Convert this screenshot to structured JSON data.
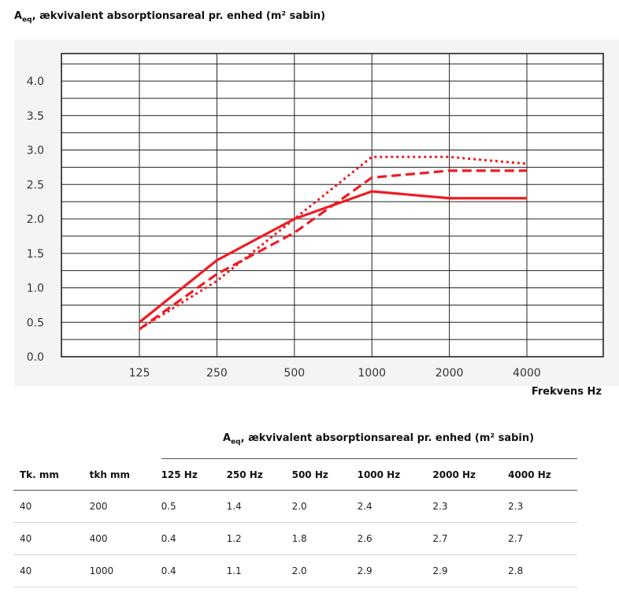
{
  "chart_data": {
    "type": "line",
    "title": "ækvivalent absorptionsareal pr. enhed (m² sabin)",
    "title_symbol": "A",
    "title_subscript": "eq",
    "title_sep": ",",
    "xlabel": "Frekvens Hz",
    "categories": [
      "125",
      "250",
      "500",
      "1000",
      "2000",
      "4000"
    ],
    "yticks": [
      "0.0",
      "0.5",
      "1.0",
      "1.5",
      "2.0",
      "2.5",
      "3.0",
      "3.5",
      "4.0"
    ],
    "ylim": [
      0,
      4.0
    ],
    "grid": true,
    "series": [
      {
        "values": [
          0.5,
          1.4,
          2.0,
          2.4,
          2.3,
          2.3
        ],
        "style": "solid",
        "color": "#ee1c24"
      },
      {
        "values": [
          0.4,
          1.2,
          1.8,
          2.6,
          2.7,
          2.7
        ],
        "style": "dashed",
        "color": "#ee1c24"
      },
      {
        "values": [
          0.4,
          1.1,
          2.0,
          2.9,
          2.9,
          2.8
        ],
        "style": "dotted",
        "color": "#ee1c24"
      }
    ]
  },
  "table": {
    "caption_symbol": "A",
    "caption_subscript": "eq",
    "caption_text": ", ækvivalent absorptionsareal pr. enhed (m² sabin)",
    "headers": [
      "Tk. mm",
      "tkh mm",
      "125 Hz",
      "250 Hz",
      "500 Hz",
      "1000 Hz",
      "2000 Hz",
      "4000 Hz"
    ],
    "rows": [
      [
        "40",
        "200",
        "0.5",
        "1.4",
        "2.0",
        "2.4",
        "2.3",
        "2.3"
      ],
      [
        "40",
        "400",
        "0.4",
        "1.2",
        "1.8",
        "2.6",
        "2.7",
        "2.7"
      ],
      [
        "40",
        "1000",
        "0.4",
        "1.1",
        "2.0",
        "2.9",
        "2.9",
        "2.8"
      ]
    ]
  }
}
